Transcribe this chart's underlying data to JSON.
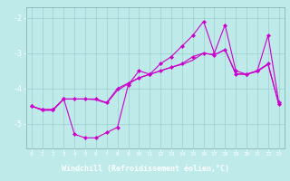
{
  "xlabel": "Windchill (Refroidissement éolien,°C)",
  "background_color": "#beeaea",
  "plot_bg_color": "#beeaea",
  "grid_color": "#9ecece",
  "line_color": "#cc00cc",
  "xlabel_bg_color": "#8800aa",
  "xlabel_text_color": "#ffffff",
  "tick_text_color": "#ffffff",
  "x": [
    0,
    1,
    2,
    3,
    4,
    5,
    6,
    7,
    8,
    9,
    10,
    11,
    12,
    13,
    14,
    15,
    16,
    17,
    18,
    19,
    20,
    21,
    22,
    23
  ],
  "series1": [
    -4.5,
    -4.6,
    -4.6,
    -4.3,
    -5.3,
    -5.4,
    -5.4,
    -5.25,
    -5.1,
    -3.9,
    -3.5,
    -3.6,
    -3.3,
    -3.1,
    -2.8,
    -2.5,
    -2.1,
    -3.0,
    -2.2,
    -3.5,
    -3.6,
    -3.5,
    -2.5,
    -4.4
  ],
  "series2": [
    -4.5,
    -4.6,
    -4.6,
    -4.3,
    -4.3,
    -4.3,
    -4.3,
    -4.4,
    -4.0,
    -3.85,
    -3.7,
    -3.6,
    -3.5,
    -3.4,
    -3.3,
    -3.1,
    -3.0,
    -3.05,
    -2.9,
    -3.6,
    -3.6,
    -3.5,
    -3.3,
    -4.45
  ],
  "series3": [
    -4.5,
    -4.62,
    -4.62,
    -4.3,
    -4.3,
    -4.3,
    -4.32,
    -4.42,
    -4.05,
    -3.87,
    -3.7,
    -3.6,
    -3.5,
    -3.4,
    -3.32,
    -3.2,
    -3.0,
    -3.05,
    -2.9,
    -3.58,
    -3.6,
    -3.52,
    -3.32,
    -4.45
  ],
  "ylim": [
    -5.7,
    -1.7
  ],
  "xlim": [
    -0.5,
    23.5
  ],
  "yticks": [
    -5,
    -4,
    -3,
    -2
  ],
  "xticks": [
    0,
    1,
    2,
    3,
    4,
    5,
    6,
    7,
    8,
    9,
    10,
    11,
    12,
    13,
    14,
    15,
    16,
    17,
    18,
    19,
    20,
    21,
    22,
    23
  ]
}
